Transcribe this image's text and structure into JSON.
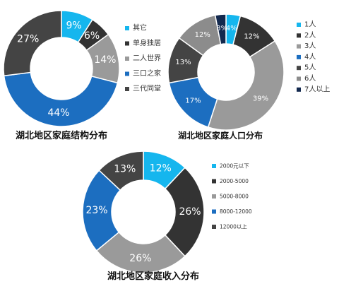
{
  "chart_data": [
    {
      "type": "pie",
      "donut": true,
      "title": "湖北地区家庭结构分布",
      "legend_position": "right",
      "categories": [
        "其它",
        "单身独居",
        "二人世界",
        "三口之家",
        "三代同堂"
      ],
      "values": [
        9,
        6,
        14,
        44,
        27
      ],
      "labels": [
        "9%",
        "6%",
        "14%",
        "44%",
        "27%"
      ],
      "colors": [
        "#15b6ee",
        "#333333",
        "#9a9a9a",
        "#1c6ec0",
        "#444444"
      ]
    },
    {
      "type": "pie",
      "donut": true,
      "title": "湖北地区家庭人口分布",
      "legend_position": "right",
      "categories": [
        "1人",
        "2人",
        "3人",
        "4人",
        "5人",
        "6人",
        "7人以上"
      ],
      "values": [
        4,
        12,
        39,
        17,
        13,
        12,
        3
      ],
      "labels": [
        "4%",
        "12%",
        "39%",
        "17%",
        "13%",
        "12%",
        "3%"
      ],
      "colors": [
        "#15b6ee",
        "#333333",
        "#9a9a9a",
        "#1c6ec0",
        "#444444",
        "#8c8c8c",
        "#13294e"
      ]
    },
    {
      "type": "pie",
      "donut": true,
      "title": "湖北地区家庭收入分布",
      "legend_position": "right",
      "categories": [
        "2000元以下",
        "2000-5000",
        "5000-8000",
        "8000-12000",
        "12000以上"
      ],
      "values": [
        12,
        26,
        26,
        23,
        13
      ],
      "labels": [
        "12%",
        "26%",
        "26%",
        "23%",
        "13%"
      ],
      "colors": [
        "#15b6ee",
        "#333333",
        "#9a9a9a",
        "#1c6ec0",
        "#444444"
      ]
    }
  ]
}
